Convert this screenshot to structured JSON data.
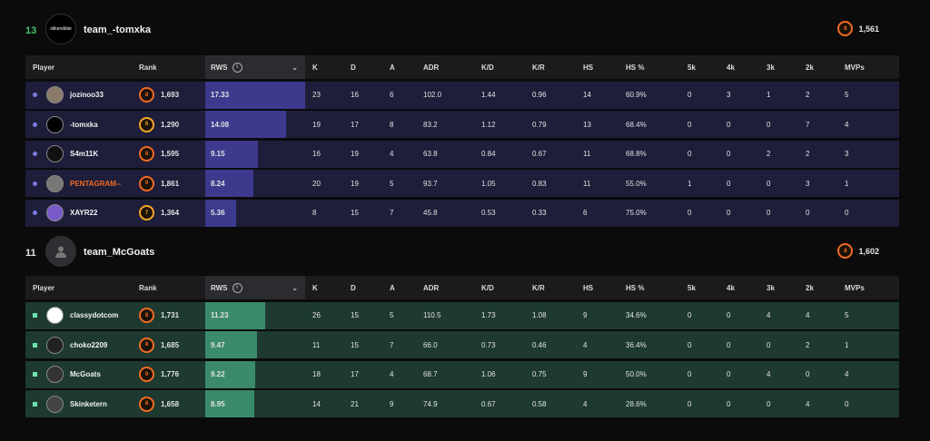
{
  "colors": {
    "orange": "#f26b21",
    "green_accent": "#45c46d",
    "blue_row": "#1e1e3a",
    "blue_fill": "#3d3a8e",
    "green_row": "#1e3a30",
    "green_fill": "#3a8a6b"
  },
  "columns": {
    "player": "Player",
    "rank": "Rank",
    "rws": "RWS",
    "k": "K",
    "d": "D",
    "a": "A",
    "adr": "ADR",
    "kd": "K/D",
    "kr": "K/R",
    "hs": "HS",
    "hs_pct": "HS %",
    "k5": "5k",
    "k4": "4k",
    "k3": "3k",
    "k2": "2k",
    "mvps": "MVPs"
  },
  "teams": [
    {
      "score": "13",
      "name": "team_-tomxka",
      "logo_text": "stikerskbie",
      "elo": "1,561",
      "elo_badge": "8",
      "players": [
        {
          "name": "jozinoo33",
          "badge": "8",
          "elo": "1,693",
          "rws": "17.33",
          "rws_fraction": 1.0,
          "k": "23",
          "d": "16",
          "a": "6",
          "adr": "102.0",
          "kd": "1.44",
          "kr": "0.96",
          "hs": "14",
          "hs_pct": "60.9%",
          "k5": "0",
          "k4": "3",
          "k3": "1",
          "k2": "2",
          "mvps": "5"
        },
        {
          "name": "-tomxka",
          "badge": "6",
          "elo": "1,290",
          "rws": "14.08",
          "rws_fraction": 0.81,
          "k": "19",
          "d": "17",
          "a": "8",
          "adr": "83.2",
          "kd": "1.12",
          "kr": "0.79",
          "hs": "13",
          "hs_pct": "68.4%",
          "k5": "0",
          "k4": "0",
          "k3": "0",
          "k2": "7",
          "mvps": "4"
        },
        {
          "name": "S4m11K",
          "badge": "8",
          "elo": "1,595",
          "rws": "9.15",
          "rws_fraction": 0.53,
          "k": "16",
          "d": "19",
          "a": "4",
          "adr": "63.8",
          "kd": "0.84",
          "kr": "0.67",
          "hs": "11",
          "hs_pct": "68.8%",
          "k5": "0",
          "k4": "0",
          "k3": "2",
          "k2": "2",
          "mvps": "3"
        },
        {
          "name": "PENTAGRAM--",
          "badge": "9",
          "elo": "1,861",
          "rws": "8.24",
          "rws_fraction": 0.48,
          "k": "20",
          "d": "19",
          "a": "5",
          "adr": "93.7",
          "kd": "1.05",
          "kr": "0.83",
          "hs": "11",
          "hs_pct": "55.0%",
          "k5": "1",
          "k4": "0",
          "k3": "0",
          "k2": "3",
          "mvps": "1",
          "name_orange": true
        },
        {
          "name": "XAYR22",
          "badge": "7",
          "elo": "1,364",
          "rws": "5.36",
          "rws_fraction": 0.31,
          "k": "8",
          "d": "15",
          "a": "7",
          "adr": "45.8",
          "kd": "0.53",
          "kr": "0.33",
          "hs": "6",
          "hs_pct": "75.0%",
          "k5": "0",
          "k4": "0",
          "k3": "0",
          "k2": "0",
          "mvps": "0"
        }
      ]
    },
    {
      "score": "11",
      "name": "team_McGoats",
      "logo_text": "",
      "elo": "1,602",
      "elo_badge": "8",
      "players": [
        {
          "name": "classydotcom",
          "badge": "8",
          "elo": "1,731",
          "rws": "11.23",
          "rws_fraction": 0.6,
          "k": "26",
          "d": "15",
          "a": "5",
          "adr": "110.5",
          "kd": "1.73",
          "kr": "1.08",
          "hs": "9",
          "hs_pct": "34.6%",
          "k5": "0",
          "k4": "0",
          "k3": "4",
          "k2": "4",
          "mvps": "5"
        },
        {
          "name": "choko2209",
          "badge": "8",
          "elo": "1,685",
          "rws": "9.47",
          "rws_fraction": 0.52,
          "k": "11",
          "d": "15",
          "a": "7",
          "adr": "66.0",
          "kd": "0.73",
          "kr": "0.46",
          "hs": "4",
          "hs_pct": "36.4%",
          "k5": "0",
          "k4": "0",
          "k3": "0",
          "k2": "2",
          "mvps": "1"
        },
        {
          "name": "McGoats",
          "badge": "9",
          "elo": "1,776",
          "rws": "9.22",
          "rws_fraction": 0.5,
          "k": "18",
          "d": "17",
          "a": "4",
          "adr": "68.7",
          "kd": "1.06",
          "kr": "0.75",
          "hs": "9",
          "hs_pct": "50.0%",
          "k5": "0",
          "k4": "0",
          "k3": "4",
          "k2": "0",
          "mvps": "4"
        },
        {
          "name": "Skinketern",
          "badge": "8",
          "elo": "1,658",
          "rws": "8.95",
          "rws_fraction": 0.49,
          "k": "14",
          "d": "21",
          "a": "9",
          "adr": "74.9",
          "kd": "0.67",
          "kr": "0.58",
          "hs": "4",
          "hs_pct": "28.6%",
          "k5": "0",
          "k4": "0",
          "k3": "0",
          "k2": "4",
          "mvps": "0"
        }
      ]
    }
  ]
}
